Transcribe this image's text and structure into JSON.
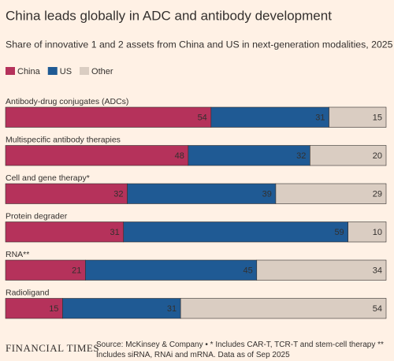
{
  "chart_data": {
    "type": "stacked_bar_horizontal",
    "title": "China leads globally in ADC and antibody development",
    "subtitle": "Share of innovative 1 and 2 assets from China and US in next-generation modalities, 2025 (%)",
    "categories": [
      "Antibody-drug conjugates (ADCs)",
      "Multispecific antibody therapies",
      "Cell and gene therapy*",
      "Protein degrader",
      "RNA**",
      "Radioligand"
    ],
    "series": [
      {
        "name": "China",
        "color": "#b5325b",
        "values": [
          54,
          48,
          32,
          31,
          21,
          15
        ]
      },
      {
        "name": "US",
        "color": "#1f5a94",
        "values": [
          31,
          32,
          39,
          59,
          45,
          31
        ]
      },
      {
        "name": "Other",
        "color": "#dacdc2",
        "values": [
          15,
          20,
          29,
          10,
          34,
          54
        ]
      }
    ],
    "xlim": [
      0,
      100
    ],
    "legend": "top-left",
    "source": "Source: McKinsey & Company • * Includes CAR-T, TCR-T and stem-cell therapy ** Includes siRNA, RNAi and mRNA. Data as of Sep 2025",
    "brand": "FINANCIAL TIMES"
  }
}
